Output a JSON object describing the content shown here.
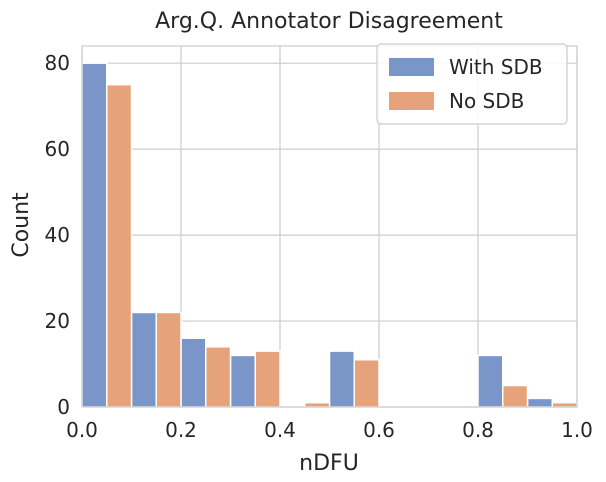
{
  "chart_data": {
    "type": "bar",
    "title": "Arg.Q. Annotator Disagreement",
    "xlabel": "nDFU",
    "ylabel": "Count",
    "xlim": [
      0,
      1.0
    ],
    "ylim": [
      0,
      84
    ],
    "xticks": [
      "0.0",
      "0.2",
      "0.4",
      "0.6",
      "0.8",
      "1.0"
    ],
    "yticks": [
      "0",
      "20",
      "40",
      "60",
      "80"
    ],
    "grid": true,
    "legend_position": "top-right",
    "bin_width": 0.1,
    "bin_starts": [
      0.0,
      0.1,
      0.2,
      0.3,
      0.4,
      0.5,
      0.6,
      0.7,
      0.8,
      0.9
    ],
    "series": [
      {
        "name": "With SDB",
        "color": "#7a96c8",
        "values": [
          80,
          22,
          16,
          12,
          0,
          13,
          0,
          0,
          12,
          2
        ]
      },
      {
        "name": "No SDB",
        "color": "#e6a27a",
        "values": [
          75,
          22,
          14,
          13,
          1,
          11,
          0,
          0,
          5,
          1
        ]
      }
    ]
  }
}
